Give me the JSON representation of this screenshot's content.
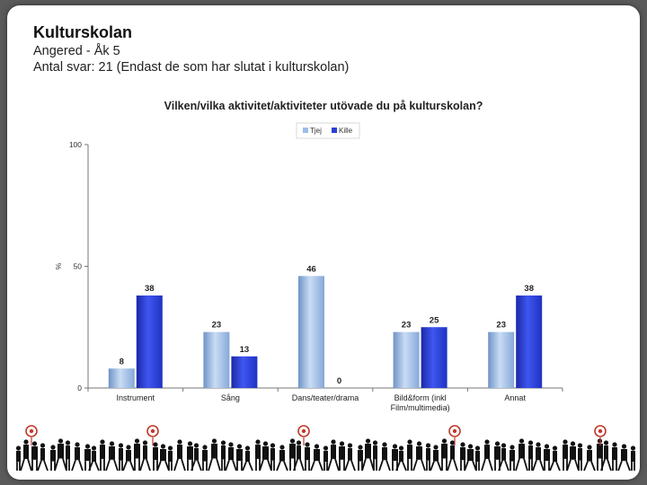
{
  "header": {
    "title": "Kulturskolan",
    "subtitle1": "Angered - Åk 5",
    "subtitle2": "Antal svar: 21 (Endast de som har slutat i kulturskolan)"
  },
  "chart_data": {
    "type": "bar",
    "title": "Vilken/vilka aktivitet/aktiviteter utövade du på kulturskolan?",
    "ylabel": "%",
    "ylim": [
      0,
      100
    ],
    "yticks": [
      0,
      50,
      100
    ],
    "categories": [
      "Instrument",
      "Sång",
      "Dans/teater/drama",
      "Bild&form (inkl Film/multimedia)",
      "Annat"
    ],
    "category_lines": [
      [
        "Instrument"
      ],
      [
        "Sång"
      ],
      [
        "Dans/teater/drama"
      ],
      [
        "Bild&form (inkl",
        "Film/multimedia)"
      ],
      [
        "Annat"
      ]
    ],
    "series": [
      {
        "name": "Tjej",
        "values": [
          8,
          23,
          46,
          23,
          23
        ],
        "color": "#9dbde8"
      },
      {
        "name": "Kille",
        "values": [
          38,
          13,
          0,
          25,
          38
        ],
        "color": "#2a3fd6"
      }
    ],
    "legend_position": "top-center",
    "grid": false
  }
}
